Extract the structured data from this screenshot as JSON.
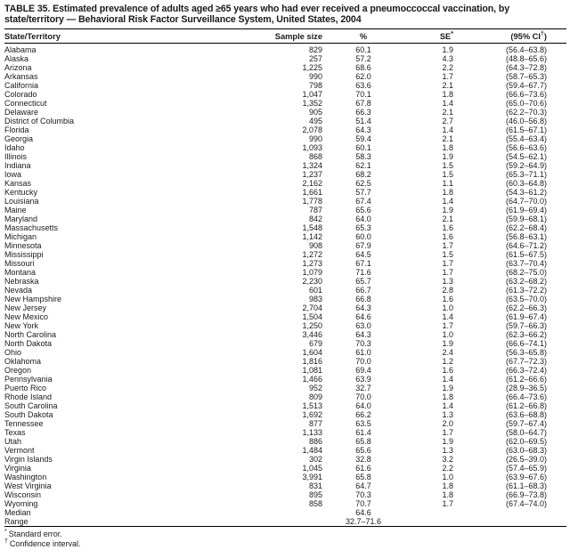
{
  "title": "TABLE 35. Estimated prevalence of adults aged ≥65 years who had ever received a pneumoccoccal vaccination, by state/territory — Behavioral Risk Factor Surveillance System, United States, 2004",
  "columns": {
    "state": "State/Territory",
    "sample_size": "Sample size",
    "percent": "%",
    "se": {
      "label": "SE",
      "sup": "*"
    },
    "ci": {
      "pre": "(95% CI",
      "sup": "†",
      "post": ")"
    }
  },
  "rows": [
    {
      "state": "Alabama",
      "sample_size": "829",
      "percent": "60.1",
      "se": "1.9",
      "ci": "(56.4–63.8)"
    },
    {
      "state": "Alaska",
      "sample_size": "257",
      "percent": "57.2",
      "se": "4.3",
      "ci": "(48.8–65.6)"
    },
    {
      "state": "Arizona",
      "sample_size": "1,225",
      "percent": "68.6",
      "se": "2.2",
      "ci": "(64.3–72.8)"
    },
    {
      "state": "Arkansas",
      "sample_size": "990",
      "percent": "62.0",
      "se": "1.7",
      "ci": "(58.7–65.3)"
    },
    {
      "state": "California",
      "sample_size": "798",
      "percent": "63.6",
      "se": "2.1",
      "ci": "(59.4–67.7)"
    },
    {
      "state": "Colorado",
      "sample_size": "1,047",
      "percent": "70.1",
      "se": "1.8",
      "ci": "(66.6–73.6)"
    },
    {
      "state": "Connecticut",
      "sample_size": "1,352",
      "percent": "67.8",
      "se": "1.4",
      "ci": "(65.0–70.6)"
    },
    {
      "state": "Delaware",
      "sample_size": "905",
      "percent": "66.3",
      "se": "2.1",
      "ci": "(62.2–70.3)"
    },
    {
      "state": "District of Columbia",
      "sample_size": "495",
      "percent": "51.4",
      "se": "2.7",
      "ci": "(46.0–56.8)"
    },
    {
      "state": "Florida",
      "sample_size": "2,078",
      "percent": "64.3",
      "se": "1.4",
      "ci": "(61.5–67.1)"
    },
    {
      "state": "Georgia",
      "sample_size": "990",
      "percent": "59.4",
      "se": "2.1",
      "ci": "(55.4–63.4)"
    },
    {
      "state": "Idaho",
      "sample_size": "1,093",
      "percent": "60.1",
      "se": "1.8",
      "ci": "(56.6–63.6)"
    },
    {
      "state": "Illinois",
      "sample_size": "868",
      "percent": "58.3",
      "se": "1.9",
      "ci": "(54.5–62.1)"
    },
    {
      "state": "Indiana",
      "sample_size": "1,324",
      "percent": "62.1",
      "se": "1.5",
      "ci": "(59.2–64.9)"
    },
    {
      "state": "Iowa",
      "sample_size": "1,237",
      "percent": "68.2",
      "se": "1.5",
      "ci": "(65.3–71.1)"
    },
    {
      "state": "Kansas",
      "sample_size": "2,162",
      "percent": "62.5",
      "se": "1.1",
      "ci": "(60.3–64.8)"
    },
    {
      "state": "Kentucky",
      "sample_size": "1,661",
      "percent": "57.7",
      "se": "1.8",
      "ci": "(54.3–61.2)"
    },
    {
      "state": "Louisiana",
      "sample_size": "1,778",
      "percent": "67.4",
      "se": "1.4",
      "ci": "(64.7–70.0)"
    },
    {
      "state": "Maine",
      "sample_size": "787",
      "percent": "65.6",
      "se": "1.9",
      "ci": "(61.9–69.4)"
    },
    {
      "state": "Maryland",
      "sample_size": "842",
      "percent": "64.0",
      "se": "2.1",
      "ci": "(59.9–68.1)"
    },
    {
      "state": "Massachusetts",
      "sample_size": "1,548",
      "percent": "65.3",
      "se": "1.6",
      "ci": "(62.2–68.4)"
    },
    {
      "state": "Michigan",
      "sample_size": "1,142",
      "percent": "60.0",
      "se": "1.6",
      "ci": "(56.8–63.1)"
    },
    {
      "state": "Minnesota",
      "sample_size": "908",
      "percent": "67.9",
      "se": "1.7",
      "ci": "(64.6–71.2)"
    },
    {
      "state": "Mississippi",
      "sample_size": "1,272",
      "percent": "64.5",
      "se": "1.5",
      "ci": "(61.5–67.5)"
    },
    {
      "state": "Missouri",
      "sample_size": "1,273",
      "percent": "67.1",
      "se": "1.7",
      "ci": "(63.7–70.4)"
    },
    {
      "state": "Montana",
      "sample_size": "1,079",
      "percent": "71.6",
      "se": "1.7",
      "ci": "(68.2–75.0)"
    },
    {
      "state": "Nebraska",
      "sample_size": "2,230",
      "percent": "65.7",
      "se": "1.3",
      "ci": "(63.2–68.2)"
    },
    {
      "state": "Nevada",
      "sample_size": "601",
      "percent": "66.7",
      "se": "2.8",
      "ci": "(61.3–72.2)"
    },
    {
      "state": "New Hampshire",
      "sample_size": "983",
      "percent": "66.8",
      "se": "1.6",
      "ci": "(63.5–70.0)"
    },
    {
      "state": "New Jersey",
      "sample_size": "2,704",
      "percent": "64.3",
      "se": "1.0",
      "ci": "(62.2–66.3)"
    },
    {
      "state": "New Mexico",
      "sample_size": "1,504",
      "percent": "64.6",
      "se": "1.4",
      "ci": "(61.9–67.4)"
    },
    {
      "state": "New York",
      "sample_size": "1,250",
      "percent": "63.0",
      "se": "1.7",
      "ci": "(59.7–66.3)"
    },
    {
      "state": "North Carolina",
      "sample_size": "3,446",
      "percent": "64.3",
      "se": "1.0",
      "ci": "(62.3–66.2)"
    },
    {
      "state": "North Dakota",
      "sample_size": "679",
      "percent": "70.3",
      "se": "1.9",
      "ci": "(66.6–74.1)"
    },
    {
      "state": "Ohio",
      "sample_size": "1,604",
      "percent": "61.0",
      "se": "2.4",
      "ci": "(56.3–65.8)"
    },
    {
      "state": "Oklahoma",
      "sample_size": "1,816",
      "percent": "70.0",
      "se": "1.2",
      "ci": "(67.7–72.3)"
    },
    {
      "state": "Oregon",
      "sample_size": "1,081",
      "percent": "69.4",
      "se": "1.6",
      "ci": "(66.3–72.4)"
    },
    {
      "state": "Pennsylvania",
      "sample_size": "1,466",
      "percent": "63.9",
      "se": "1.4",
      "ci": "(61.2–66.6)"
    },
    {
      "state": "Puerto Rico",
      "sample_size": "952",
      "percent": "32.7",
      "se": "1.9",
      "ci": "(28.9–36.5)"
    },
    {
      "state": "Rhode Island",
      "sample_size": "809",
      "percent": "70.0",
      "se": "1.8",
      "ci": "(66.4–73.6)"
    },
    {
      "state": "South Carolina",
      "sample_size": "1,513",
      "percent": "64.0",
      "se": "1.4",
      "ci": "(61.2–66.8)"
    },
    {
      "state": "South Dakota",
      "sample_size": "1,692",
      "percent": "66.2",
      "se": "1.3",
      "ci": "(63.6–68.8)"
    },
    {
      "state": "Tennessee",
      "sample_size": "877",
      "percent": "63.5",
      "se": "2.0",
      "ci": "(59.7–67.4)"
    },
    {
      "state": "Texas",
      "sample_size": "1,133",
      "percent": "61.4",
      "se": "1.7",
      "ci": "(58.0–64.7)"
    },
    {
      "state": "Utah",
      "sample_size": "886",
      "percent": "65.8",
      "se": "1.9",
      "ci": "(62.0–69.5)"
    },
    {
      "state": "Vermont",
      "sample_size": "1,484",
      "percent": "65.6",
      "se": "1.3",
      "ci": "(63.0–68.3)"
    },
    {
      "state": "Virgin Islands",
      "sample_size": "302",
      "percent": "32.8",
      "se": "3.2",
      "ci": "(26.5–39.0)"
    },
    {
      "state": "Virginia",
      "sample_size": "1,045",
      "percent": "61.6",
      "se": "2.2",
      "ci": "(57.4–65.9)"
    },
    {
      "state": "Washington",
      "sample_size": "3,991",
      "percent": "65.8",
      "se": "1.0",
      "ci": "(63.9–67.6)"
    },
    {
      "state": "West Virginia",
      "sample_size": "831",
      "percent": "64.7",
      "se": "1.8",
      "ci": "(61.1–68.3)"
    },
    {
      "state": "Wisconsin",
      "sample_size": "895",
      "percent": "70.3",
      "se": "1.8",
      "ci": "(66.9–73.8)"
    },
    {
      "state": "Wyoming",
      "sample_size": "858",
      "percent": "70.7",
      "se": "1.7",
      "ci": "(67.4–74.0)"
    }
  ],
  "summary_rows": [
    {
      "label": "Median",
      "value": "64.6"
    },
    {
      "label": "Range",
      "value": "32.7–71.6"
    }
  ],
  "footnotes": [
    {
      "marker": "*",
      "text": "Standard error."
    },
    {
      "marker": "†",
      "text": "Confidence interval."
    }
  ]
}
